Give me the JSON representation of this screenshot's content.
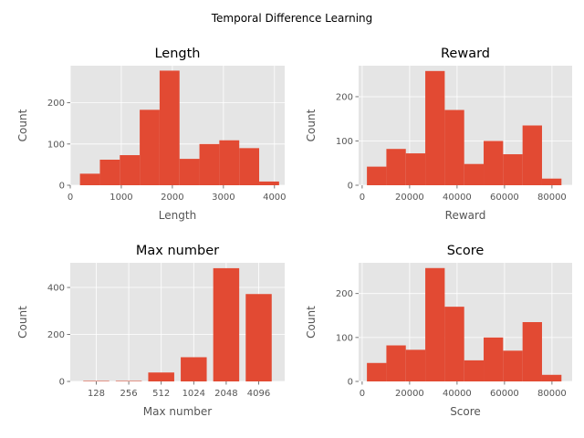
{
  "figure": {
    "suptitle": "Temporal Difference Learning",
    "bar_color": "#E24A33",
    "axes_bg": "#E5E5E5",
    "grid_color": "#FFFFFF",
    "text_color": "#555555"
  },
  "chart_data": [
    {
      "type": "bar",
      "title": "Length",
      "xlabel": "Length",
      "ylabel": "Count",
      "xlim": [
        0,
        4200
      ],
      "ylim": [
        0,
        290
      ],
      "xticks": [
        0,
        1000,
        2000,
        3000,
        4000
      ],
      "yticks": [
        0,
        100,
        200
      ],
      "bins": [
        [
          190,
          580
        ],
        [
          580,
          970
        ],
        [
          970,
          1360
        ],
        [
          1360,
          1750
        ],
        [
          1750,
          2140
        ],
        [
          2140,
          2530
        ],
        [
          2530,
          2920
        ],
        [
          2920,
          3310
        ],
        [
          3310,
          3700
        ],
        [
          3700,
          4090
        ]
      ],
      "values": [
        28,
        62,
        73,
        183,
        278,
        64,
        100,
        109,
        90,
        9
      ]
    },
    {
      "type": "bar",
      "title": "Reward",
      "xlabel": "Reward",
      "ylabel": "Count",
      "xlim": [
        -1500,
        88500
      ],
      "ylim": [
        0,
        270
      ],
      "xticks": [
        0,
        20000,
        40000,
        60000,
        80000
      ],
      "yticks": [
        0,
        100,
        200
      ],
      "bins": [
        [
          2000,
          10200
        ],
        [
          10200,
          18400
        ],
        [
          18400,
          26600
        ],
        [
          26600,
          34800
        ],
        [
          34800,
          43000
        ],
        [
          43000,
          51200
        ],
        [
          51200,
          59400
        ],
        [
          59400,
          67600
        ],
        [
          67600,
          75800
        ],
        [
          75800,
          84000
        ]
      ],
      "values": [
        42,
        82,
        72,
        258,
        170,
        48,
        100,
        70,
        135,
        15
      ]
    },
    {
      "type": "bar",
      "title": "Max number",
      "xlabel": "Max number",
      "ylabel": "Count",
      "ylim": [
        0,
        505
      ],
      "yticks": [
        0,
        200,
        400
      ],
      "categories": [
        "128",
        "256",
        "512",
        "1024",
        "2048",
        "4096"
      ],
      "values": [
        2,
        2,
        38,
        103,
        482,
        372
      ]
    },
    {
      "type": "bar",
      "title": "Score",
      "xlabel": "Score",
      "ylabel": "Count",
      "xlim": [
        -1500,
        88500
      ],
      "ylim": [
        0,
        270
      ],
      "xticks": [
        0,
        20000,
        40000,
        60000,
        80000
      ],
      "yticks": [
        0,
        100,
        200
      ],
      "bins": [
        [
          2000,
          10200
        ],
        [
          10200,
          18400
        ],
        [
          18400,
          26600
        ],
        [
          26600,
          34800
        ],
        [
          34800,
          43000
        ],
        [
          43000,
          51200
        ],
        [
          51200,
          59400
        ],
        [
          59400,
          67600
        ],
        [
          67600,
          75800
        ],
        [
          75800,
          84000
        ]
      ],
      "values": [
        42,
        82,
        72,
        258,
        170,
        48,
        100,
        70,
        135,
        15
      ]
    }
  ]
}
